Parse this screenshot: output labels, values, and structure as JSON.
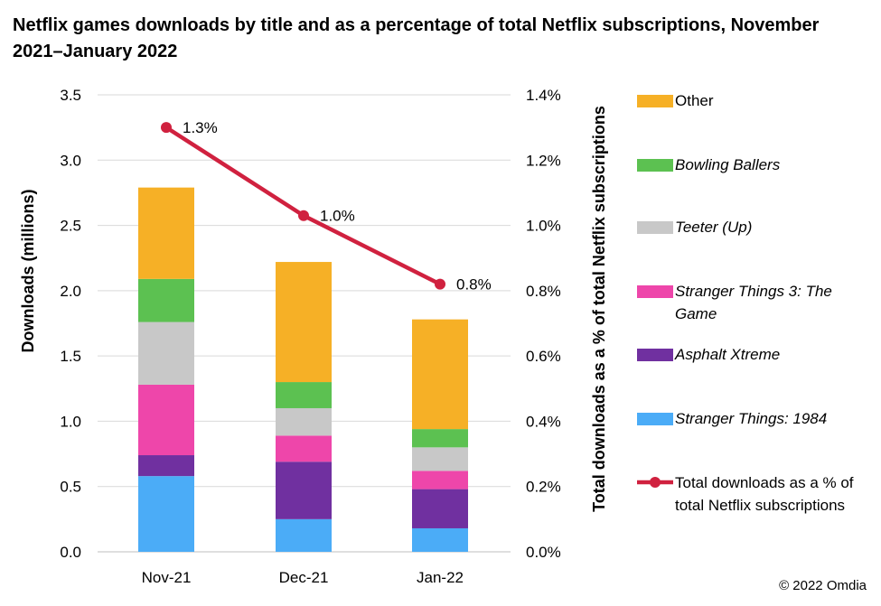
{
  "chart_data": {
    "type": "bar",
    "stacked": true,
    "title": "Netflix games downloads by title and as a percentage of total Netflix subscriptions, November 2021–January 2022",
    "categories": [
      "Nov-21",
      "Dec-21",
      "Jan-22"
    ],
    "ylabel": "Downloads (millions)",
    "ylim": [
      0,
      3.5
    ],
    "yticks": [
      "0.0",
      "0.5",
      "1.0",
      "1.5",
      "2.0",
      "2.5",
      "3.0",
      "3.5"
    ],
    "y2label": "Total downloads as a % of total Netflix subscriptions",
    "y2lim": [
      0,
      1.4
    ],
    "y2ticks": [
      "0.0%",
      "0.2%",
      "0.4%",
      "0.6%",
      "0.8%",
      "1.0%",
      "1.2%",
      "1.4%"
    ],
    "grid": true,
    "legend_position": "right",
    "series": [
      {
        "name": "Stranger Things: 1984",
        "color": "#4BACF7",
        "italic": true,
        "values": [
          0.58,
          0.25,
          0.18
        ]
      },
      {
        "name": "Asphalt Xtreme",
        "color": "#7030A0",
        "italic": true,
        "values": [
          0.16,
          0.44,
          0.3
        ]
      },
      {
        "name": "Stranger Things 3: The Game",
        "color": "#EE46AA",
        "italic": true,
        "values": [
          0.54,
          0.2,
          0.14
        ]
      },
      {
        "name": "Teeter (Up)",
        "color": "#C8C8C8",
        "italic": true,
        "values": [
          0.48,
          0.21,
          0.18
        ]
      },
      {
        "name": "Bowling Ballers",
        "color": "#5CC151",
        "italic": true,
        "values": [
          0.33,
          0.2,
          0.14
        ]
      },
      {
        "name": "Other",
        "color": "#F6B026",
        "italic": false,
        "values": [
          0.7,
          0.92,
          0.84
        ]
      }
    ],
    "line": {
      "name": "Total downloads as a % of total Netflix subscriptions",
      "color": "#D0213F",
      "values": [
        1.3,
        1.03,
        0.82
      ],
      "labels": [
        "1.3%",
        "1.0%",
        "0.8%"
      ]
    }
  },
  "copyright": "© 2022 Omdia"
}
